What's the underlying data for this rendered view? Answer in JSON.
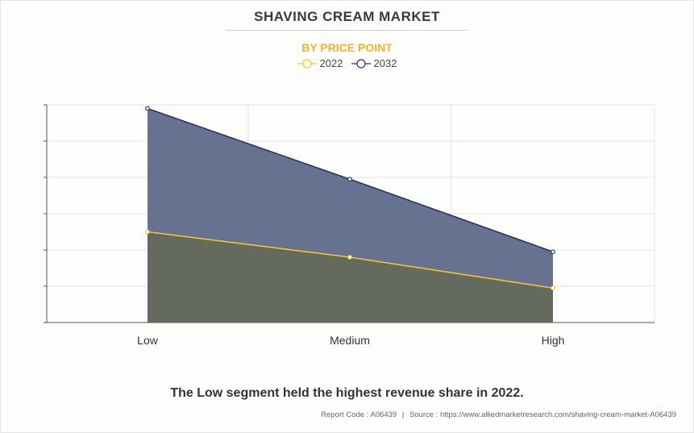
{
  "header": {
    "title": "SHAVING CREAM MARKET",
    "subtitle": "BY PRICE POINT"
  },
  "caption": "The Low segment held the highest revenue share in 2022.",
  "footer": {
    "report_code": "Report Code : A06439",
    "separator": "|",
    "source": "Source : https://www.alliedmarketresearch.com/shaving-cream-market-A06439"
  },
  "colors": {
    "series_2022": "#f5c431",
    "series_2032": "#27375e",
    "fill_2022": "#656a5e",
    "fill_2032": "#677290",
    "grid": "#e2e2e2",
    "axis": "#555555"
  },
  "chart_data": {
    "type": "area",
    "categories": [
      "Low",
      "Medium",
      "High"
    ],
    "series": [
      {
        "name": "2022",
        "values": [
          2.5,
          1.8,
          0.95
        ]
      },
      {
        "name": "2032",
        "values": [
          5.9,
          3.95,
          1.95
        ]
      }
    ],
    "ylim": [
      0,
      6
    ],
    "y_ticks": [
      0,
      1,
      2,
      3,
      4,
      5,
      6
    ],
    "grid": true,
    "legend": "top-center"
  }
}
